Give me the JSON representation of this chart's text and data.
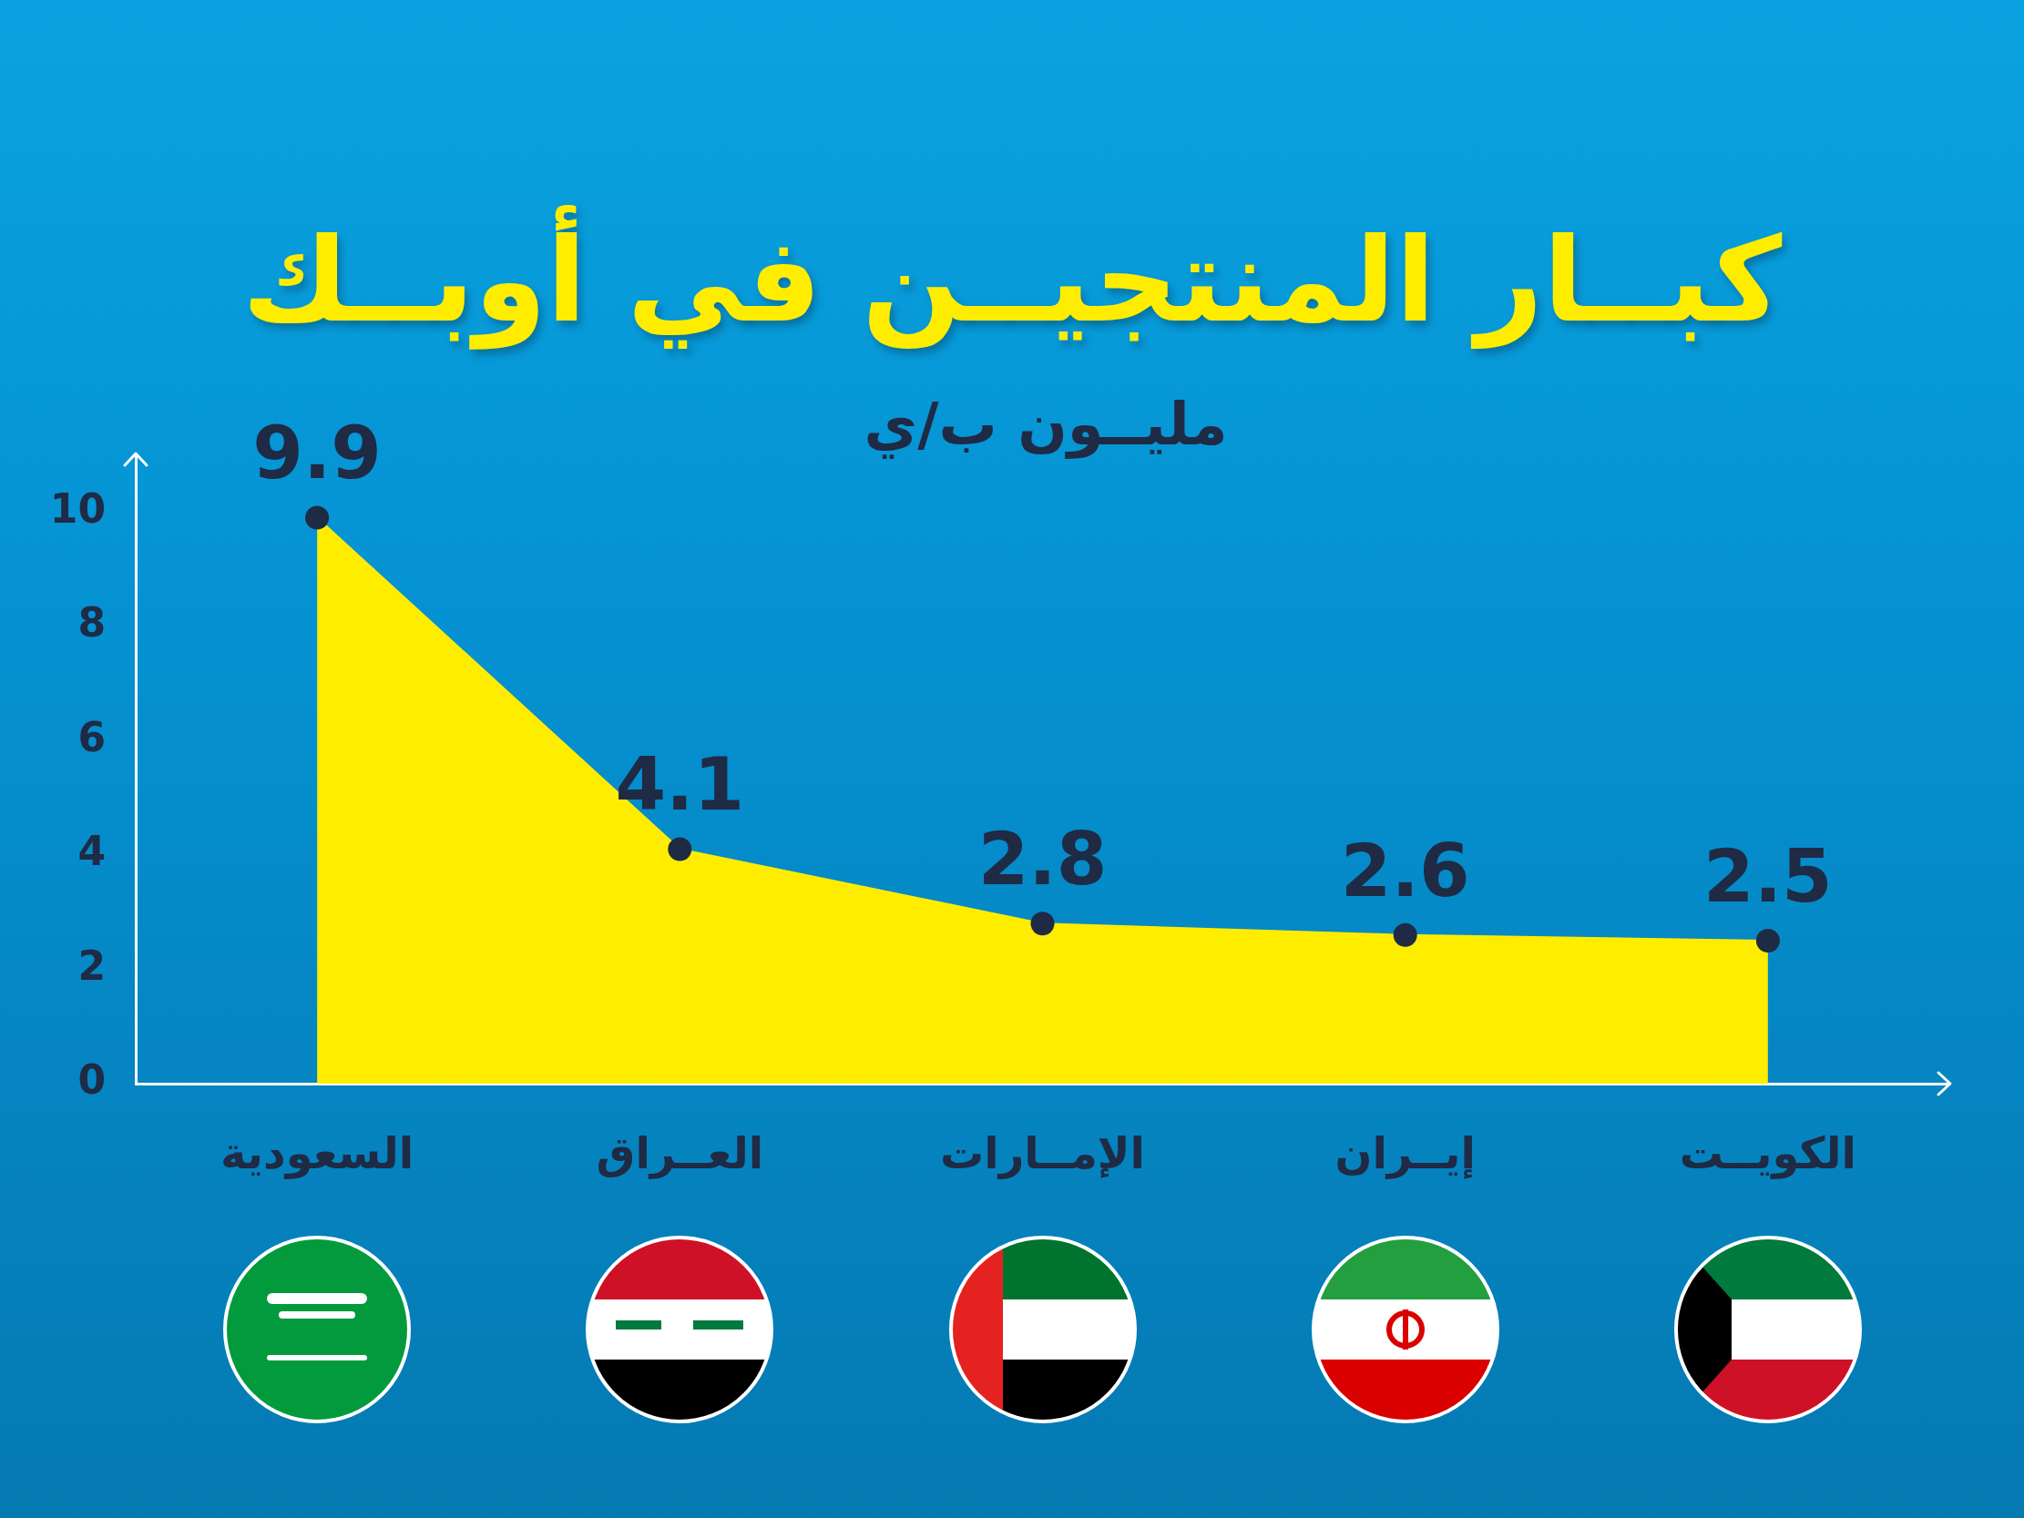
{
  "chart_data": {
    "type": "area",
    "title": "كبــار المنتجيــن في أوبــك",
    "subtitle": "مليــون ب/ي",
    "categories": [
      "السعودية",
      "العــراق",
      "الإمــارات",
      "إيــران",
      "الكويــت"
    ],
    "values": [
      9.9,
      4.1,
      2.8,
      2.6,
      2.5
    ],
    "color": "#ffed00",
    "ylim": [
      0,
      11
    ],
    "yticks": [
      0,
      2,
      4,
      6,
      8,
      10
    ],
    "grid": false,
    "legend": false,
    "marker": "circle",
    "data_labels": true
  }
}
